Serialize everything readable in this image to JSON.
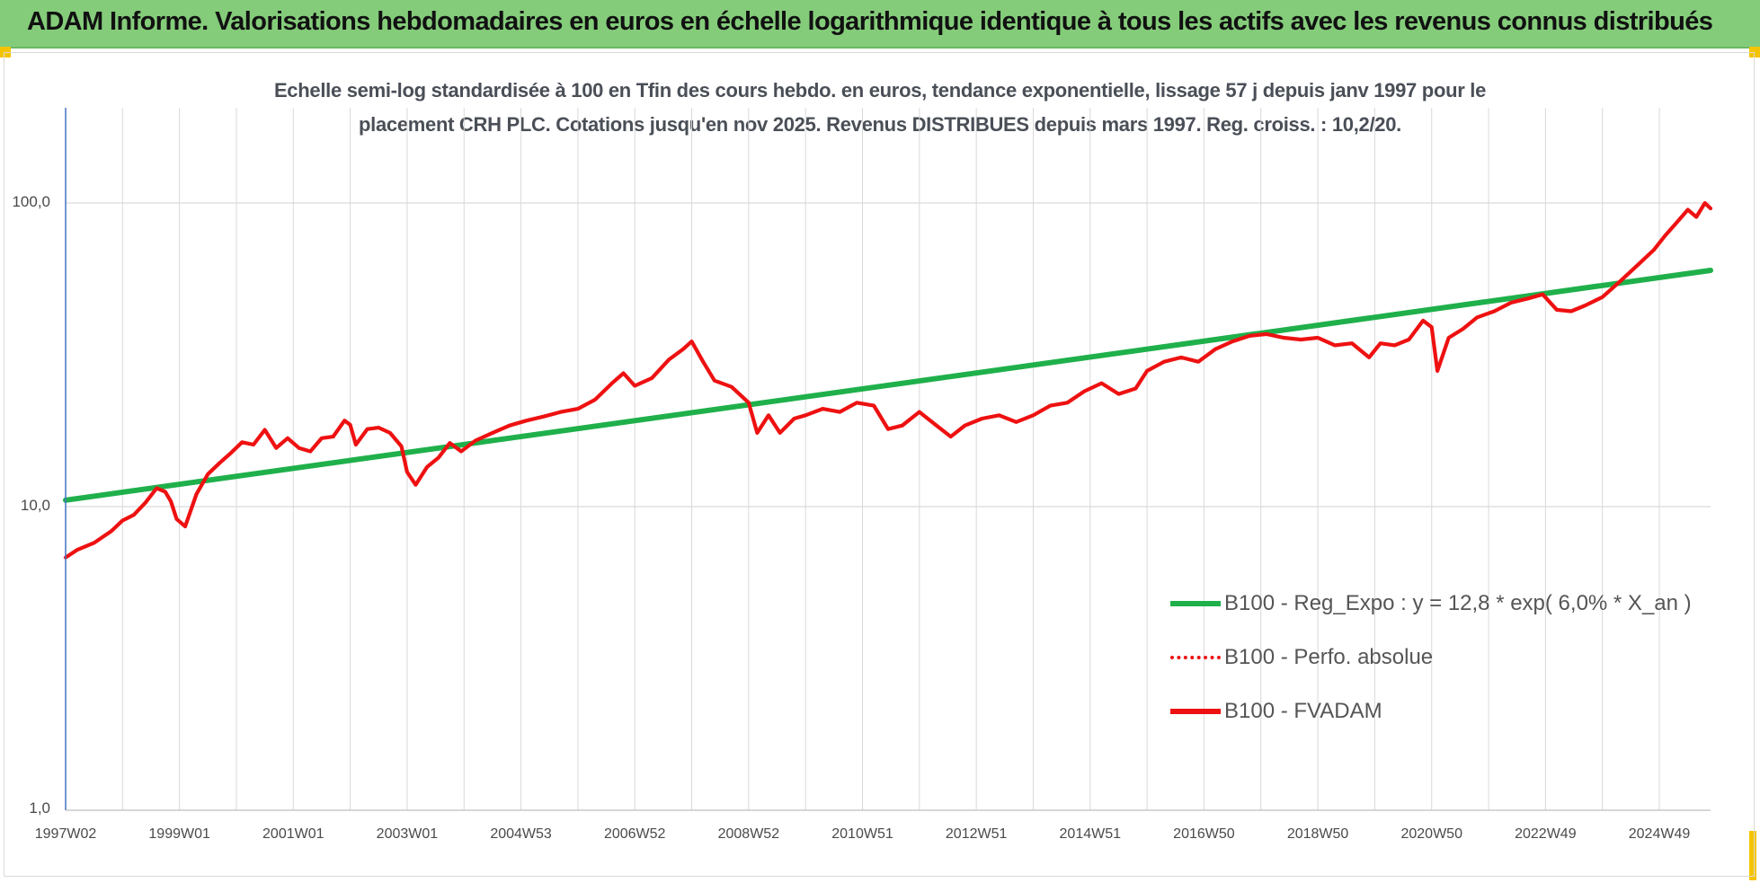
{
  "banner": {
    "title": "ADAM Informe. Valorisations hebdomadaires en euros en échelle logarithmique identique à tous les actifs avec les revenus connus distribués",
    "background": "#84cc7a"
  },
  "colors": {
    "regression": "#1fb04b",
    "series": "#ee1111",
    "grid": "#d9d9d9",
    "accent": "#f5c400"
  },
  "chart_data": {
    "type": "line",
    "title_lines": [
      "Echelle semi-log standardisée à 100 en Tfin des cours hebdo. en euros, tendance exponentielle, lissage 57 j depuis janv 1997 pour le",
      "placement CRH PLC. Cotations jusqu'en nov 2025. Revenus DISTRIBUES depuis mars 1997. Reg. croiss. : 10,2/20."
    ],
    "y_scale": "log",
    "ylim": [
      1,
      180
    ],
    "y_ticks": [
      {
        "value": 1,
        "label": "1,0"
      },
      {
        "value": 10,
        "label": "10,0"
      },
      {
        "value": 100,
        "label": "100,0"
      }
    ],
    "xlim": [
      1997.0,
      2025.9
    ],
    "x_ticks": [
      {
        "x": 1997.0,
        "label": "1997W02"
      },
      {
        "x": 1999.0,
        "label": "1999W01"
      },
      {
        "x": 2001.0,
        "label": "2001W01"
      },
      {
        "x": 2003.0,
        "label": "2003W01"
      },
      {
        "x": 2005.0,
        "label": "2004W53"
      },
      {
        "x": 2007.0,
        "label": "2006W52"
      },
      {
        "x": 2009.0,
        "label": "2008W52"
      },
      {
        "x": 2011.0,
        "label": "2010W51"
      },
      {
        "x": 2013.0,
        "label": "2012W51"
      },
      {
        "x": 2015.0,
        "label": "2014W51"
      },
      {
        "x": 2017.0,
        "label": "2016W50"
      },
      {
        "x": 2019.0,
        "label": "2018W50"
      },
      {
        "x": 2021.0,
        "label": "2020W50"
      },
      {
        "x": 2023.0,
        "label": "2022W49"
      },
      {
        "x": 2025.0,
        "label": "2024W49"
      }
    ],
    "grid": true,
    "legend_position": "bottom-right",
    "series": [
      {
        "name": "B100 - Reg_Expo : y = 12,8 * exp( 6,0% *  X_an )",
        "style": "solid",
        "color": "#1fb04b",
        "points": [
          [
            1997.0,
            10.5
          ],
          [
            2025.9,
            60.0
          ]
        ]
      },
      {
        "name": "B100 - Perfo. absolue",
        "style": "dotted",
        "color": "#ee1111",
        "points": []
      },
      {
        "name": "B100 - FVADAM",
        "style": "solid",
        "color": "#ee1111",
        "points": [
          [
            1997.0,
            6.8
          ],
          [
            1997.2,
            7.2
          ],
          [
            1997.5,
            7.6
          ],
          [
            1997.8,
            8.3
          ],
          [
            1998.0,
            9.0
          ],
          [
            1998.2,
            9.4
          ],
          [
            1998.4,
            10.3
          ],
          [
            1998.6,
            11.5
          ],
          [
            1998.75,
            11.2
          ],
          [
            1998.85,
            10.4
          ],
          [
            1998.95,
            9.1
          ],
          [
            1999.1,
            8.6
          ],
          [
            1999.3,
            11.0
          ],
          [
            1999.5,
            12.8
          ],
          [
            1999.7,
            13.9
          ],
          [
            1999.9,
            15.0
          ],
          [
            2000.1,
            16.3
          ],
          [
            2000.3,
            16.0
          ],
          [
            2000.5,
            17.9
          ],
          [
            2000.7,
            15.6
          ],
          [
            2000.9,
            16.8
          ],
          [
            2001.1,
            15.6
          ],
          [
            2001.3,
            15.2
          ],
          [
            2001.5,
            16.8
          ],
          [
            2001.7,
            17.0
          ],
          [
            2001.9,
            19.2
          ],
          [
            2002.0,
            18.6
          ],
          [
            2002.1,
            16.0
          ],
          [
            2002.3,
            18.0
          ],
          [
            2002.5,
            18.2
          ],
          [
            2002.7,
            17.5
          ],
          [
            2002.9,
            15.8
          ],
          [
            2003.0,
            13.0
          ],
          [
            2003.15,
            11.8
          ],
          [
            2003.35,
            13.5
          ],
          [
            2003.55,
            14.5
          ],
          [
            2003.75,
            16.2
          ],
          [
            2003.95,
            15.2
          ],
          [
            2004.2,
            16.5
          ],
          [
            2004.5,
            17.5
          ],
          [
            2004.8,
            18.5
          ],
          [
            2005.1,
            19.2
          ],
          [
            2005.4,
            19.8
          ],
          [
            2005.7,
            20.5
          ],
          [
            2006.0,
            21.0
          ],
          [
            2006.3,
            22.5
          ],
          [
            2006.6,
            25.5
          ],
          [
            2006.8,
            27.5
          ],
          [
            2007.0,
            25.0
          ],
          [
            2007.3,
            26.5
          ],
          [
            2007.6,
            30.5
          ],
          [
            2007.85,
            33.0
          ],
          [
            2008.0,
            35.0
          ],
          [
            2008.2,
            30.0
          ],
          [
            2008.4,
            26.0
          ],
          [
            2008.7,
            24.8
          ],
          [
            2009.0,
            22.0
          ],
          [
            2009.15,
            17.5
          ],
          [
            2009.35,
            20.0
          ],
          [
            2009.55,
            17.5
          ],
          [
            2009.8,
            19.5
          ],
          [
            2010.0,
            20.0
          ],
          [
            2010.3,
            21.0
          ],
          [
            2010.6,
            20.5
          ],
          [
            2010.9,
            22.0
          ],
          [
            2011.2,
            21.5
          ],
          [
            2011.45,
            18.0
          ],
          [
            2011.7,
            18.5
          ],
          [
            2012.0,
            20.5
          ],
          [
            2012.3,
            18.5
          ],
          [
            2012.55,
            17.0
          ],
          [
            2012.8,
            18.5
          ],
          [
            2013.1,
            19.5
          ],
          [
            2013.4,
            20.0
          ],
          [
            2013.7,
            19.0
          ],
          [
            2014.0,
            20.0
          ],
          [
            2014.3,
            21.5
          ],
          [
            2014.6,
            22.0
          ],
          [
            2014.9,
            24.0
          ],
          [
            2015.2,
            25.5
          ],
          [
            2015.5,
            23.5
          ],
          [
            2015.8,
            24.5
          ],
          [
            2016.0,
            28.0
          ],
          [
            2016.3,
            30.0
          ],
          [
            2016.6,
            31.0
          ],
          [
            2016.9,
            30.0
          ],
          [
            2017.2,
            33.0
          ],
          [
            2017.5,
            35.0
          ],
          [
            2017.8,
            36.5
          ],
          [
            2018.1,
            37.0
          ],
          [
            2018.4,
            36.0
          ],
          [
            2018.7,
            35.5
          ],
          [
            2019.0,
            36.0
          ],
          [
            2019.3,
            34.0
          ],
          [
            2019.6,
            34.5
          ],
          [
            2019.9,
            31.0
          ],
          [
            2020.1,
            34.5
          ],
          [
            2020.35,
            34.0
          ],
          [
            2020.6,
            35.5
          ],
          [
            2020.85,
            41.0
          ],
          [
            2021.0,
            39.0
          ],
          [
            2021.1,
            28.0
          ],
          [
            2021.3,
            36.0
          ],
          [
            2021.55,
            38.5
          ],
          [
            2021.8,
            42.0
          ],
          [
            2022.1,
            44.0
          ],
          [
            2022.4,
            47.0
          ],
          [
            2022.7,
            48.5
          ],
          [
            2022.95,
            50.0
          ],
          [
            2023.2,
            44.5
          ],
          [
            2023.45,
            44.0
          ],
          [
            2023.7,
            46.0
          ],
          [
            2024.0,
            49.0
          ],
          [
            2024.3,
            55.0
          ],
          [
            2024.6,
            62.0
          ],
          [
            2024.9,
            70.0
          ],
          [
            2025.1,
            78.0
          ],
          [
            2025.3,
            86.0
          ],
          [
            2025.5,
            95.0
          ],
          [
            2025.65,
            90.0
          ],
          [
            2025.8,
            100.0
          ],
          [
            2025.9,
            96.0
          ]
        ]
      }
    ]
  }
}
